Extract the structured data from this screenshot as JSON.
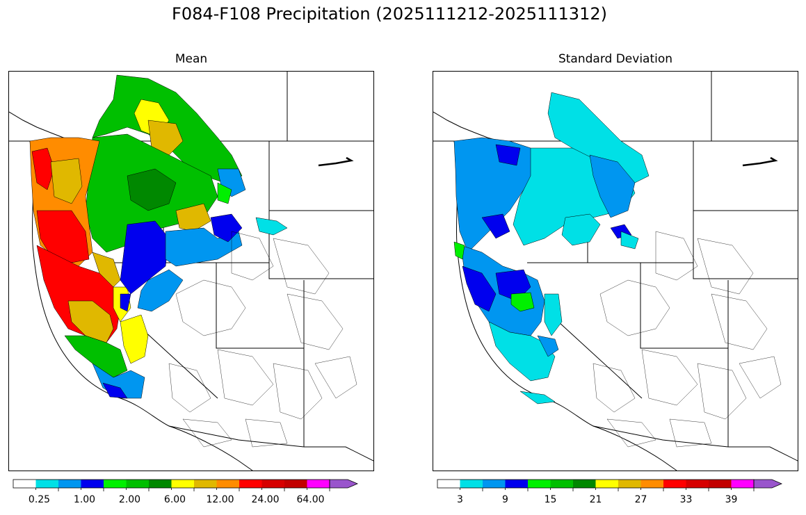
{
  "figure": {
    "title": "F084-F108 Precipitation (2025111212-2025111312)"
  },
  "panels": [
    {
      "title": "Mean",
      "colorbar": {
        "colors": [
          "#ffffff",
          "#00e0e6",
          "#0096f0",
          "#0000ee",
          "#00f000",
          "#00bf00",
          "#008800",
          "#ffff00",
          "#e0b800",
          "#ff8c00",
          "#ff0000",
          "#d70000",
          "#c20000",
          "#ff00ff",
          "#9955cc"
        ],
        "tick_labels": [
          "0.25",
          "1.00",
          "2.00",
          "6.00",
          "12.00",
          "24.00",
          "64.00"
        ]
      }
    },
    {
      "title": "Standard Deviation",
      "colorbar": {
        "colors": [
          "#ffffff",
          "#00e0e6",
          "#0096f0",
          "#0000ee",
          "#00f000",
          "#00bf00",
          "#008800",
          "#ffff00",
          "#e0b800",
          "#ff8c00",
          "#ff0000",
          "#d70000",
          "#c20000",
          "#ff00ff",
          "#9955cc"
        ],
        "tick_labels": [
          "3",
          "9",
          "15",
          "21",
          "27",
          "33",
          "39"
        ]
      }
    }
  ]
}
